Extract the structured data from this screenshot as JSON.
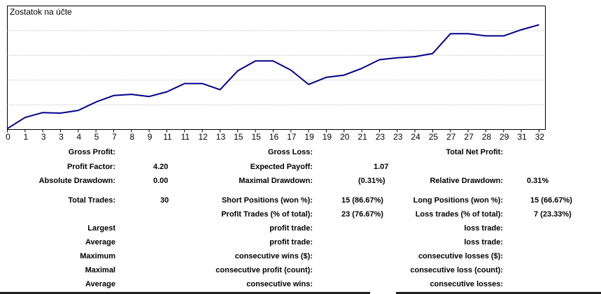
{
  "chart_data": {
    "type": "line",
    "title": "Zostatok na účte",
    "x_ticks": [
      "0",
      "1",
      "3",
      "3",
      "4",
      "5",
      "7",
      "8",
      "9",
      "11",
      "11",
      "12",
      "13",
      "15",
      "15",
      "16",
      "17",
      "19",
      "19",
      "20",
      "21",
      "23",
      "23",
      "24",
      "25",
      "27",
      "27",
      "28",
      "29",
      "31",
      "32"
    ],
    "series": [
      {
        "color": "#00008b",
        "x": [
          0,
          1,
          2,
          3,
          4,
          5,
          6,
          7,
          8,
          9,
          10,
          11,
          12,
          13,
          14,
          15,
          16,
          17,
          18,
          19,
          20,
          21,
          22,
          23,
          24,
          25,
          26,
          27,
          28,
          29,
          30
        ],
        "y": [
          0.3,
          3.9,
          5.5,
          5.3,
          6.2,
          8.9,
          11.0,
          11.4,
          10.7,
          12.2,
          14.9,
          14.9,
          12.9,
          19.0,
          22.2,
          22.2,
          19.2,
          14.6,
          16.9,
          17.6,
          19.8,
          22.6,
          23.2,
          23.6,
          24.6,
          31.0,
          31.0,
          30.3,
          30.3,
          32.3,
          33.9
        ]
      }
    ],
    "ylim": [
      0,
      40
    ],
    "grid": true,
    "line_color": "#00008b"
  },
  "stats": {
    "gross_profit_label": "Gross Profit:",
    "gross_loss_label": "Gross Loss:",
    "total_net_profit_label": "Total Net Profit:",
    "profit_factor_label": "Profit Factor:",
    "profit_factor_value": "4.20",
    "expected_payoff_label": "Expected Payoff:",
    "expected_payoff_value": "1.07",
    "absolute_drawdown_label": "Absolute Drawdown:",
    "absolute_drawdown_value": "0.00",
    "maximal_drawdown_label": "Maximal Drawdown:",
    "maximal_drawdown_value": "(0.31%)",
    "relative_drawdown_label": "Relative Drawdown:",
    "relative_drawdown_value": "0.31%",
    "total_trades_label": "Total Trades:",
    "total_trades_value": "30",
    "short_positions_label": "Short Positions (won %):",
    "short_positions_value": "15 (86.67%)",
    "long_positions_label": "Long Positions (won %):",
    "long_positions_value": "15 (66.67%)",
    "profit_trades_label": "Profit Trades (% of total):",
    "profit_trades_value": "23 (76.67%)",
    "loss_trades_label": "Loss trades (% of total):",
    "loss_trades_value": "7 (23.33%)",
    "rows": [
      {
        "a": "Largest",
        "b": "profit trade:",
        "c": "loss trade:"
      },
      {
        "a": "Average",
        "b": "profit trade:",
        "c": "loss trade:"
      },
      {
        "a": "Maximum",
        "b": "consecutive wins ($):",
        "c": "consecutive losses ($):"
      },
      {
        "a": "Maximal",
        "b": "consecutive profit (count):",
        "c": "consecutive loss (count):"
      },
      {
        "a": "Average",
        "b": "consecutive wins:",
        "c": "consecutive losses:"
      }
    ]
  }
}
